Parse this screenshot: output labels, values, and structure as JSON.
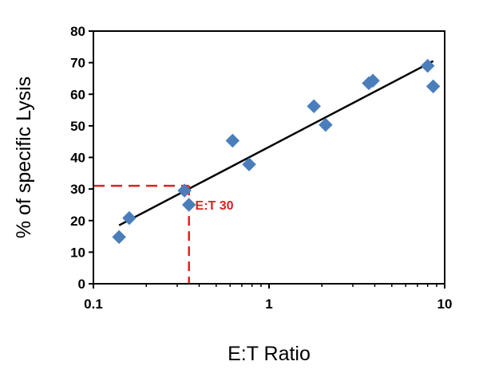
{
  "chart_data": {
    "type": "scatter",
    "xlabel": "E:T Ratio",
    "ylabel": "% of specific Lysis",
    "x_scale": "log",
    "xlim": [
      0.1,
      10
    ],
    "ylim": [
      0,
      80
    ],
    "x_ticks": [
      0.1,
      1,
      10
    ],
    "x_tick_labels": [
      "0.1",
      "1",
      "10"
    ],
    "y_ticks": [
      0,
      10,
      20,
      30,
      40,
      50,
      60,
      70,
      80
    ],
    "y_tick_labels": [
      "0",
      "10",
      "20",
      "30",
      "40",
      "50",
      "60",
      "70",
      "80"
    ],
    "grid": false,
    "series": [
      {
        "marker": "diamond",
        "color": "#4a7ebb",
        "points": [
          {
            "x": 0.14,
            "y": 14.8
          },
          {
            "x": 0.16,
            "y": 20.8
          },
          {
            "x": 0.33,
            "y": 29.5
          },
          {
            "x": 0.35,
            "y": 25.0
          },
          {
            "x": 0.62,
            "y": 45.3
          },
          {
            "x": 0.77,
            "y": 37.8
          },
          {
            "x": 1.8,
            "y": 56.2
          },
          {
            "x": 2.1,
            "y": 50.3
          },
          {
            "x": 3.7,
            "y": 63.5
          },
          {
            "x": 3.9,
            "y": 64.3
          },
          {
            "x": 8.0,
            "y": 69.0
          },
          {
            "x": 8.6,
            "y": 62.5
          }
        ]
      }
    ],
    "trendline": {
      "color": "#000000",
      "from": {
        "x": 0.14,
        "y": 18.5
      },
      "to": {
        "x": 8.6,
        "y": 70.5
      }
    },
    "reference_lines": {
      "color": "#e02020",
      "x": 0.35,
      "y": 31
    },
    "annotation": {
      "text": "E:T 30",
      "color": "#e02020",
      "x": 0.38,
      "y": 25
    }
  }
}
